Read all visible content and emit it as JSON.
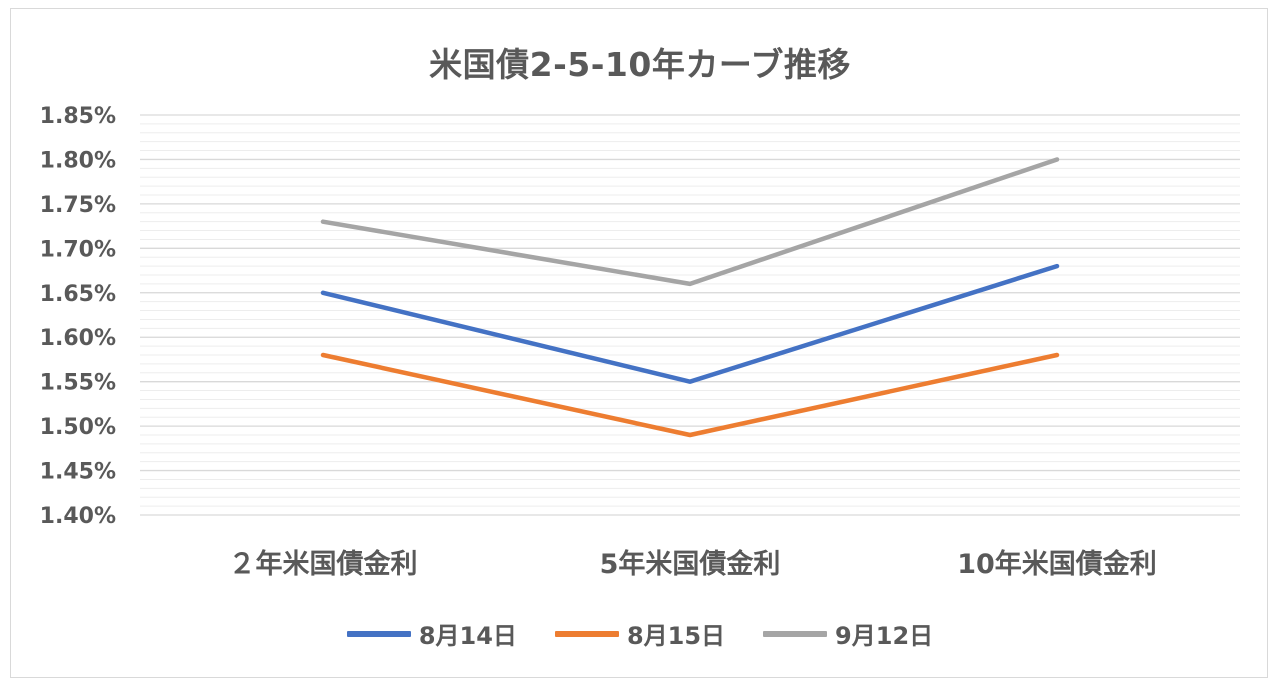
{
  "chart_data": {
    "type": "line",
    "title": "米国債2-5-10年カーブ推移",
    "categories": [
      "２年米国債金利",
      "5年米国債金利",
      "10年米国債金利"
    ],
    "series": [
      {
        "name": "8月14日",
        "values": [
          1.65,
          1.55,
          1.68
        ],
        "color": "#4472c4"
      },
      {
        "name": "8月15日",
        "values": [
          1.58,
          1.49,
          1.58
        ],
        "color": "#ed7d31"
      },
      {
        "name": "9月12日",
        "values": [
          1.73,
          1.66,
          1.8
        ],
        "color": "#a5a5a5"
      }
    ],
    "ylim": [
      1.4,
      1.85
    ],
    "yticks": [
      "1.40%",
      "1.45%",
      "1.50%",
      "1.55%",
      "1.60%",
      "1.65%",
      "1.70%",
      "1.75%",
      "1.80%",
      "1.85%"
    ],
    "ytick_values": [
      1.4,
      1.45,
      1.5,
      1.55,
      1.6,
      1.65,
      1.7,
      1.75,
      1.8,
      1.85
    ],
    "grid": true,
    "legend": "bottom",
    "xlabel": "",
    "ylabel": ""
  }
}
